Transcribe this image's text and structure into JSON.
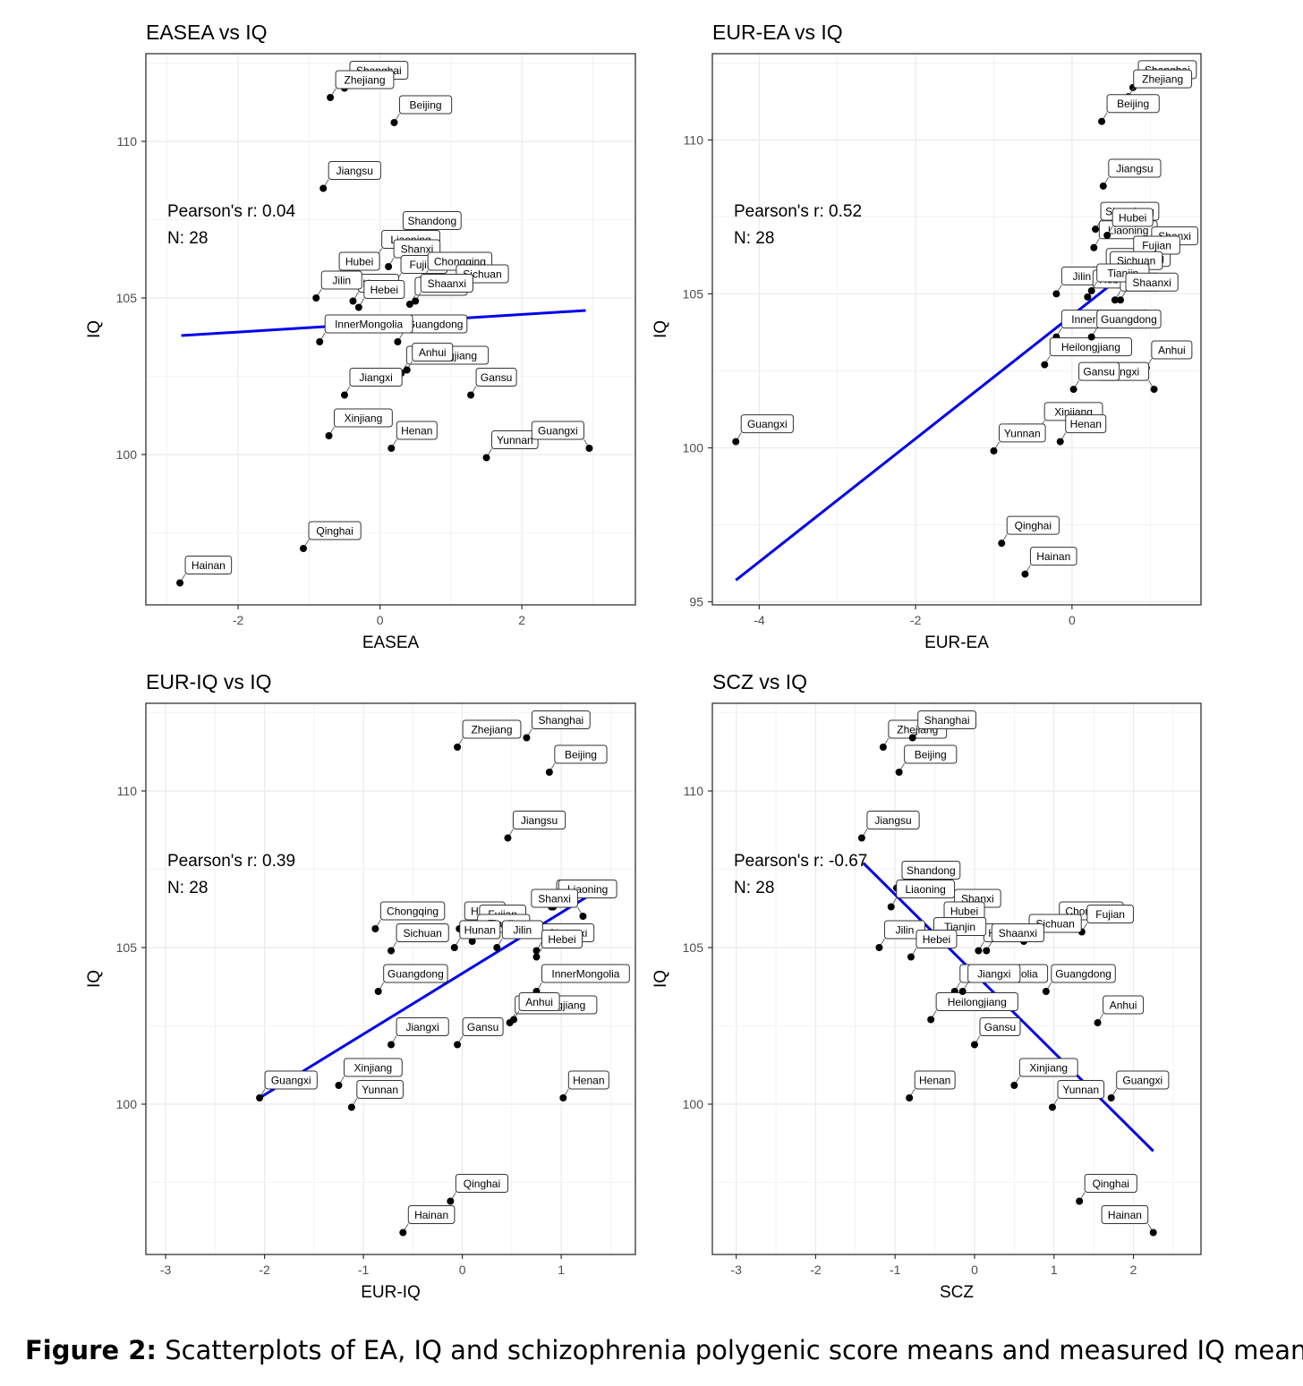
{
  "caption": {
    "label": "Figure 2:",
    "text": "Scatterplots of EA, IQ and schizophrenia polygenic score means and measured IQ means."
  },
  "colors": {
    "fit_line": "#0000ee",
    "point": "#000000",
    "grid": "#ebebeb",
    "panel_border": "#333333"
  },
  "chart_data": [
    {
      "type": "scatter",
      "title": "EASEA vs IQ",
      "xlabel": "EASEA",
      "ylabel": "IQ",
      "xlim": [
        -3.3,
        3.6
      ],
      "ylim": [
        95.2,
        112.8
      ],
      "xticks": [
        -2,
        0,
        2
      ],
      "yticks": [
        100,
        105,
        110
      ],
      "grid": true,
      "annotation": [
        "Pearson's r: 0.04",
        "N: 28"
      ],
      "fit_line": [
        [
          -2.8,
          103.8
        ],
        [
          2.9,
          104.6
        ]
      ],
      "points": [
        {
          "label": "Shanghai",
          "x": -0.5,
          "y": 111.7
        },
        {
          "label": "Zhejiang",
          "x": -0.7,
          "y": 111.4
        },
        {
          "label": "Beijing",
          "x": 0.2,
          "y": 110.6
        },
        {
          "label": "Jiangsu",
          "x": -0.8,
          "y": 108.5
        },
        {
          "label": "Shandong",
          "x": 0.25,
          "y": 106.9
        },
        {
          "label": "Liaoning",
          "x": -0.05,
          "y": 106.3
        },
        {
          "label": "Shanxi",
          "x": 0.12,
          "y": 106.0
        },
        {
          "label": "Fujian",
          "x": 0.22,
          "y": 105.5
        },
        {
          "label": "Chongqing",
          "x": 0.6,
          "y": 105.6
        },
        {
          "label": "Hubei",
          "x": -0.65,
          "y": 105.6
        },
        {
          "label": "Hunan",
          "x": -0.38,
          "y": 104.9
        },
        {
          "label": "Sichuan",
          "x": 1.0,
          "y": 105.2
        },
        {
          "label": "Tianjin",
          "x": 0.42,
          "y": 104.8
        },
        {
          "label": "Shaanxi",
          "x": 0.5,
          "y": 104.9
        },
        {
          "label": "Jilin",
          "x": -0.9,
          "y": 105.0
        },
        {
          "label": "Hebei",
          "x": -0.3,
          "y": 104.7
        },
        {
          "label": "Guangdong",
          "x": 0.25,
          "y": 103.6
        },
        {
          "label": "InnerMongolia",
          "x": -0.85,
          "y": 103.6
        },
        {
          "label": "Heilongjiang",
          "x": 0.3,
          "y": 102.6
        },
        {
          "label": "Anhui",
          "x": 0.38,
          "y": 102.7
        },
        {
          "label": "Jiangxi",
          "x": -0.5,
          "y": 101.9
        },
        {
          "label": "Gansu",
          "x": 1.28,
          "y": 101.9
        },
        {
          "label": "Xinjiang",
          "x": -0.72,
          "y": 100.6
        },
        {
          "label": "Henan",
          "x": 0.16,
          "y": 100.2
        },
        {
          "label": "Yunnan",
          "x": 1.5,
          "y": 99.9
        },
        {
          "label": "Guangxi",
          "x": 2.95,
          "y": 100.2
        },
        {
          "label": "Qinghai",
          "x": -1.08,
          "y": 97.0
        },
        {
          "label": "Hainan",
          "x": -2.82,
          "y": 95.9
        }
      ]
    },
    {
      "type": "scatter",
      "title": "EUR-EA vs IQ",
      "xlabel": "EUR-EA",
      "ylabel": "IQ",
      "xlim": [
        -4.6,
        1.65
      ],
      "ylim": [
        94.9,
        112.8
      ],
      "xticks": [
        -4,
        -2,
        0
      ],
      "yticks": [
        95,
        100,
        105,
        110
      ],
      "grid": true,
      "annotation": [
        "Pearson's r: 0.52",
        "N: 28"
      ],
      "fit_line": [
        [
          -4.3,
          95.7
        ],
        [
          1.0,
          106.3
        ]
      ],
      "points": [
        {
          "label": "Shanghai",
          "x": 0.78,
          "y": 111.7
        },
        {
          "label": "Zhejiang",
          "x": 0.72,
          "y": 111.4
        },
        {
          "label": "Beijing",
          "x": 0.38,
          "y": 110.6
        },
        {
          "label": "Jiangsu",
          "x": 0.4,
          "y": 108.5
        },
        {
          "label": "Shandong",
          "x": 0.3,
          "y": 107.1
        },
        {
          "label": "Liaoning",
          "x": 0.28,
          "y": 106.5
        },
        {
          "label": "Hubei",
          "x": 0.45,
          "y": 106.9
        },
        {
          "label": "Shanxi",
          "x": 0.95,
          "y": 106.3
        },
        {
          "label": "Chongqing",
          "x": 0.37,
          "y": 105.6
        },
        {
          "label": "Fujian",
          "x": 0.72,
          "y": 106.0
        },
        {
          "label": "Jilin",
          "x": -0.2,
          "y": 105.0
        },
        {
          "label": "Sichuan",
          "x": 0.42,
          "y": 105.5
        },
        {
          "label": "InnerMongolia",
          "x": -0.2,
          "y": 103.6
        },
        {
          "label": "Hebei",
          "x": 0.2,
          "y": 104.9
        },
        {
          "label": "Hunan",
          "x": 0.55,
          "y": 104.8
        },
        {
          "label": "Tianjin",
          "x": 0.25,
          "y": 105.1
        },
        {
          "label": "Shaanxi",
          "x": 0.62,
          "y": 104.8
        },
        {
          "label": "Heilongjiang",
          "x": -0.35,
          "y": 102.7
        },
        {
          "label": "Guangdong",
          "x": 0.25,
          "y": 103.6
        },
        {
          "label": "Anhui",
          "x": 0.95,
          "y": 102.6
        },
        {
          "label": "Jiangxi",
          "x": 1.05,
          "y": 101.9
        },
        {
          "label": "Gansu",
          "x": 0.02,
          "y": 101.9
        },
        {
          "label": "Xinjiang",
          "x": -0.42,
          "y": 100.6
        },
        {
          "label": "Henan",
          "x": -0.15,
          "y": 100.2
        },
        {
          "label": "Yunnan",
          "x": -1.0,
          "y": 99.9
        },
        {
          "label": "Guangxi",
          "x": -4.3,
          "y": 100.2
        },
        {
          "label": "Qinghai",
          "x": -0.9,
          "y": 96.9
        },
        {
          "label": "Hainan",
          "x": -0.6,
          "y": 95.9
        }
      ]
    },
    {
      "type": "scatter",
      "title": "EUR-IQ vs IQ",
      "xlabel": "EUR-IQ",
      "ylabel": "IQ",
      "xlim": [
        -3.2,
        1.75
      ],
      "ylim": [
        95.2,
        112.8
      ],
      "xticks": [
        -3,
        -2,
        -1,
        0,
        1
      ],
      "yticks": [
        100,
        105,
        110
      ],
      "grid": true,
      "annotation": [
        "Pearson's r: 0.39",
        "N: 28"
      ],
      "fit_line": [
        [
          -2.05,
          100.2
        ],
        [
          1.25,
          106.6
        ]
      ],
      "points": [
        {
          "label": "Zhejiang",
          "x": -0.05,
          "y": 111.4
        },
        {
          "label": "Shanghai",
          "x": 0.65,
          "y": 111.7
        },
        {
          "label": "Beijing",
          "x": 0.88,
          "y": 110.6
        },
        {
          "label": "Jiangsu",
          "x": 0.46,
          "y": 108.5
        },
        {
          "label": "Shandong",
          "x": 0.9,
          "y": 106.3
        },
        {
          "label": "Hubei",
          "x": -0.03,
          "y": 105.6
        },
        {
          "label": "Liaoning",
          "x": 0.92,
          "y": 106.3
        },
        {
          "label": "Fujian",
          "x": 0.12,
          "y": 105.5
        },
        {
          "label": "Shanxi",
          "x": 1.22,
          "y": 106.0
        },
        {
          "label": "Chongqing",
          "x": -0.88,
          "y": 105.6
        },
        {
          "label": "Tianjin",
          "x": 0.1,
          "y": 105.2
        },
        {
          "label": "Sichuan",
          "x": -0.72,
          "y": 104.9
        },
        {
          "label": "Shaanxi",
          "x": 0.75,
          "y": 104.9
        },
        {
          "label": "Hunan",
          "x": -0.08,
          "y": 105.0
        },
        {
          "label": "Jilin",
          "x": 0.35,
          "y": 105.0
        },
        {
          "label": "Hebei",
          "x": 0.75,
          "y": 104.7
        },
        {
          "label": "Guangdong",
          "x": -0.85,
          "y": 103.6
        },
        {
          "label": "InnerMongolia",
          "x": 0.75,
          "y": 103.6
        },
        {
          "label": "Heilongjiang",
          "x": 0.48,
          "y": 102.6
        },
        {
          "label": "Anhui",
          "x": 0.52,
          "y": 102.7
        },
        {
          "label": "Jiangxi",
          "x": -0.72,
          "y": 101.9
        },
        {
          "label": "Gansu",
          "x": -0.05,
          "y": 101.9
        },
        {
          "label": "Guangxi",
          "x": -2.05,
          "y": 100.2
        },
        {
          "label": "Xinjiang",
          "x": -1.25,
          "y": 100.6
        },
        {
          "label": "Yunnan",
          "x": -1.12,
          "y": 99.9
        },
        {
          "label": "Henan",
          "x": 1.02,
          "y": 100.2
        },
        {
          "label": "Qinghai",
          "x": -0.12,
          "y": 96.9
        },
        {
          "label": "Hainan",
          "x": -0.6,
          "y": 95.9
        }
      ]
    },
    {
      "type": "scatter",
      "title": "SCZ vs IQ",
      "xlabel": "SCZ",
      "ylabel": "IQ",
      "xlim": [
        -3.3,
        2.85
      ],
      "ylim": [
        95.2,
        112.8
      ],
      "xticks": [
        -3,
        -2,
        -1,
        0,
        1,
        2
      ],
      "yticks": [
        100,
        105,
        110
      ],
      "grid": true,
      "annotation": [
        "Pearson's r: -0.67",
        "N: 28"
      ],
      "fit_line": [
        [
          -1.4,
          107.7
        ],
        [
          2.25,
          98.5
        ]
      ],
      "points": [
        {
          "label": "Zhejiang",
          "x": -1.15,
          "y": 111.4
        },
        {
          "label": "Shanghai",
          "x": -0.78,
          "y": 111.7
        },
        {
          "label": "Beijing",
          "x": -0.95,
          "y": 110.6
        },
        {
          "label": "Jiangsu",
          "x": -1.42,
          "y": 108.5
        },
        {
          "label": "Shandong",
          "x": -0.98,
          "y": 106.9
        },
        {
          "label": "Shanxi",
          "x": -0.32,
          "y": 106.0
        },
        {
          "label": "Liaoning",
          "x": -1.05,
          "y": 106.3
        },
        {
          "label": "Hubei",
          "x": -0.45,
          "y": 105.6
        },
        {
          "label": "Chongqing",
          "x": 1.0,
          "y": 105.6
        },
        {
          "label": "Jilin",
          "x": -1.2,
          "y": 105.0
        },
        {
          "label": "Hunan",
          "x": 0.05,
          "y": 104.9
        },
        {
          "label": "Fujian",
          "x": 1.35,
          "y": 105.5
        },
        {
          "label": "Sichuan",
          "x": 0.62,
          "y": 105.2
        },
        {
          "label": "Tianjin",
          "x": -0.58,
          "y": 105.1
        },
        {
          "label": "Hebei",
          "x": -0.8,
          "y": 104.7
        },
        {
          "label": "Shaanxi",
          "x": 0.15,
          "y": 104.9
        },
        {
          "label": "InnerMongolia",
          "x": -0.25,
          "y": 103.6
        },
        {
          "label": "Heilongjiang",
          "x": -0.55,
          "y": 102.7
        },
        {
          "label": "Jiangxi",
          "x": -0.15,
          "y": 103.6
        },
        {
          "label": "Guangdong",
          "x": 0.9,
          "y": 103.6
        },
        {
          "label": "Anhui",
          "x": 1.55,
          "y": 102.6
        },
        {
          "label": "Gansu",
          "x": 0.0,
          "y": 101.9
        },
        {
          "label": "Henan",
          "x": -0.82,
          "y": 100.2
        },
        {
          "label": "Xinjiang",
          "x": 0.5,
          "y": 100.6
        },
        {
          "label": "Guangxi",
          "x": 1.72,
          "y": 100.2
        },
        {
          "label": "Yunnan",
          "x": 0.98,
          "y": 99.9
        },
        {
          "label": "Qinghai",
          "x": 1.32,
          "y": 96.9
        },
        {
          "label": "Hainan",
          "x": 2.25,
          "y": 95.9
        }
      ]
    }
  ]
}
